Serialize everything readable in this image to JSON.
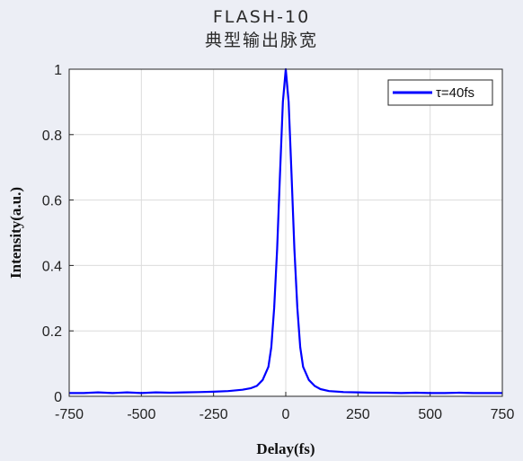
{
  "header": {
    "title": "FLASH-10",
    "subtitle": "典型输出脉宽"
  },
  "chart_data": {
    "type": "line",
    "xlabel": "Delay(fs)",
    "ylabel": "Intensity(a.u.)",
    "xlim": [
      -750,
      750
    ],
    "ylim": [
      0,
      1
    ],
    "x_ticks": [
      -750,
      -500,
      -250,
      0,
      250,
      500,
      750
    ],
    "y_ticks": [
      0,
      0.2,
      0.4,
      0.6,
      0.8,
      1
    ],
    "y_tick_labels": [
      "0",
      "0.2",
      "0.4",
      "0.6",
      "0.8",
      "1"
    ],
    "grid": true,
    "legend_position": "top-right",
    "series": [
      {
        "name": "τ=40fs",
        "color": "#0000ff",
        "x": [
          -750,
          -700,
          -650,
          -600,
          -550,
          -500,
          -450,
          -400,
          -350,
          -300,
          -250,
          -200,
          -150,
          -120,
          -100,
          -80,
          -60,
          -50,
          -40,
          -30,
          -20,
          -10,
          0,
          10,
          20,
          30,
          40,
          50,
          60,
          80,
          100,
          120,
          150,
          200,
          250,
          300,
          350,
          400,
          450,
          500,
          550,
          600,
          650,
          700,
          750
        ],
        "y": [
          0.01,
          0.01,
          0.012,
          0.01,
          0.012,
          0.01,
          0.012,
          0.011,
          0.012,
          0.013,
          0.014,
          0.016,
          0.02,
          0.025,
          0.032,
          0.05,
          0.09,
          0.15,
          0.27,
          0.45,
          0.68,
          0.9,
          1.0,
          0.9,
          0.68,
          0.45,
          0.27,
          0.15,
          0.09,
          0.05,
          0.032,
          0.022,
          0.016,
          0.013,
          0.012,
          0.011,
          0.011,
          0.01,
          0.011,
          0.01,
          0.01,
          0.011,
          0.01,
          0.01,
          0.01
        ]
      }
    ]
  }
}
